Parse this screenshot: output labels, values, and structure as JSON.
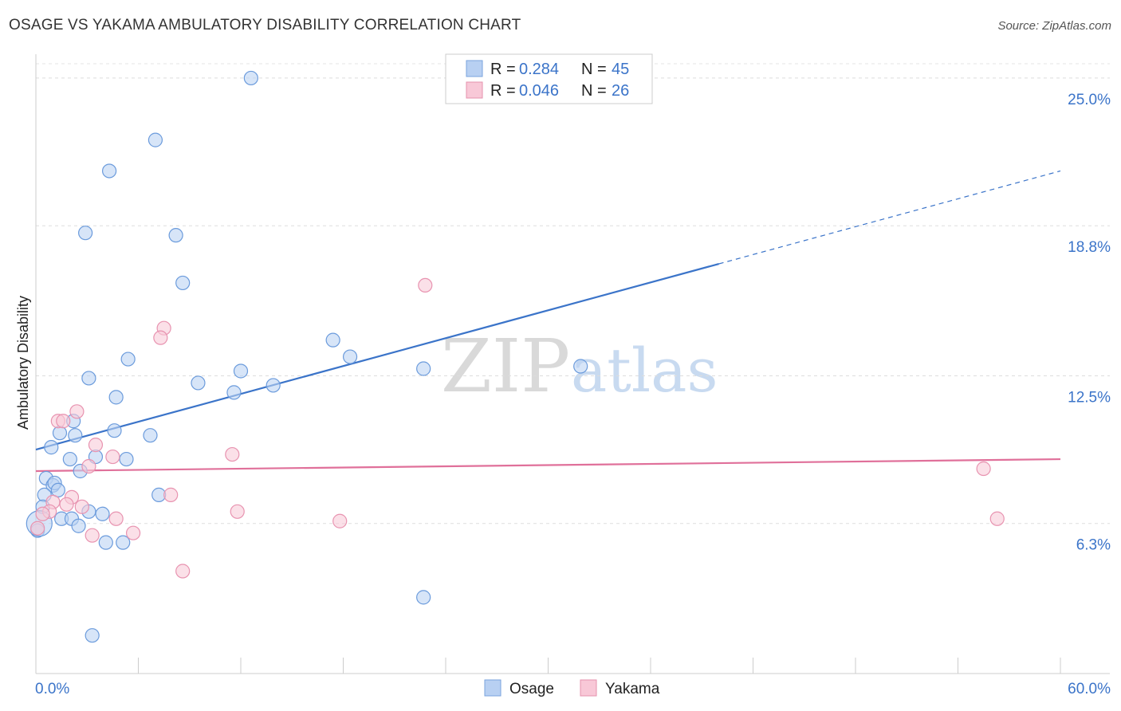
{
  "title": "OSAGE VS YAKAMA AMBULATORY DISABILITY CORRELATION CHART",
  "source": "Source: ZipAtlas.com",
  "watermark": {
    "zip": "ZIP",
    "atlas": "atlas"
  },
  "legend": {
    "rows": [
      {
        "r_label": "R =",
        "r_value": "0.284",
        "n_label": "N =",
        "n_value": "45"
      },
      {
        "r_label": "R =",
        "r_value": "0.046",
        "n_label": "N =",
        "n_value": "26"
      }
    ]
  },
  "chart_data": {
    "type": "scatter",
    "title": "OSAGE VS YAKAMA AMBULATORY DISABILITY CORRELATION CHART",
    "xlabel": "",
    "ylabel": "Ambulatory Disability",
    "xlim": [
      0,
      60
    ],
    "ylim": [
      0,
      25.6
    ],
    "x_tick_labels": [
      "0.0%",
      "60.0%"
    ],
    "y_ticks": [
      6.3,
      12.5,
      18.8,
      25.0
    ],
    "y_tick_labels": [
      "6.3%",
      "12.5%",
      "18.8%",
      "25.0%"
    ],
    "grid": true,
    "colors": {
      "Osage": "#3b74c9",
      "Yakama": "#e0709a"
    },
    "series": [
      {
        "name": "Osage",
        "trend": {
          "x0": 0,
          "y0": 9.4,
          "x1": 60,
          "y1": 21.1,
          "solid_until_x": 40
        },
        "points": [
          [
            12.6,
            25.0
          ],
          [
            7.0,
            22.4
          ],
          [
            4.3,
            21.1
          ],
          [
            2.9,
            18.5
          ],
          [
            8.2,
            18.4
          ],
          [
            8.6,
            16.4
          ],
          [
            17.4,
            14.0
          ],
          [
            18.4,
            13.3
          ],
          [
            5.4,
            13.2
          ],
          [
            3.1,
            12.4
          ],
          [
            12.0,
            12.7
          ],
          [
            9.5,
            12.2
          ],
          [
            22.7,
            12.8
          ],
          [
            31.9,
            12.9
          ],
          [
            11.6,
            11.8
          ],
          [
            13.9,
            12.1
          ],
          [
            4.7,
            11.6
          ],
          [
            2.2,
            10.6
          ],
          [
            1.4,
            10.1
          ],
          [
            2.3,
            10.0
          ],
          [
            4.6,
            10.2
          ],
          [
            6.7,
            10.0
          ],
          [
            0.9,
            9.5
          ],
          [
            2.6,
            8.5
          ],
          [
            2.0,
            9.0
          ],
          [
            3.5,
            9.1
          ],
          [
            5.3,
            9.0
          ],
          [
            0.6,
            8.2
          ],
          [
            1.0,
            7.9
          ],
          [
            1.1,
            8.0
          ],
          [
            1.3,
            7.7
          ],
          [
            0.5,
            7.5
          ],
          [
            7.2,
            7.5
          ],
          [
            0.4,
            7.0
          ],
          [
            3.1,
            6.8
          ],
          [
            3.9,
            6.7
          ],
          [
            1.5,
            6.5
          ],
          [
            2.1,
            6.5
          ],
          [
            2.5,
            6.2
          ],
          [
            0.1,
            6.0
          ],
          [
            4.1,
            5.5
          ],
          [
            5.1,
            5.5
          ],
          [
            22.7,
            3.2
          ],
          [
            3.3,
            1.6
          ],
          [
            0.2,
            6.3
          ]
        ]
      },
      {
        "name": "Yakama",
        "trend": {
          "x0": 0,
          "y0": 8.5,
          "x1": 60,
          "y1": 9.0,
          "solid_until_x": 60
        },
        "points": [
          [
            22.8,
            16.3
          ],
          [
            7.5,
            14.5
          ],
          [
            7.3,
            14.1
          ],
          [
            2.4,
            11.0
          ],
          [
            1.3,
            10.6
          ],
          [
            1.6,
            10.6
          ],
          [
            3.5,
            9.6
          ],
          [
            11.5,
            9.2
          ],
          [
            4.5,
            9.1
          ],
          [
            3.1,
            8.7
          ],
          [
            55.5,
            8.6
          ],
          [
            7.9,
            7.5
          ],
          [
            2.1,
            7.4
          ],
          [
            1.0,
            7.2
          ],
          [
            1.8,
            7.1
          ],
          [
            2.7,
            7.0
          ],
          [
            0.8,
            6.8
          ],
          [
            0.4,
            6.7
          ],
          [
            11.8,
            6.8
          ],
          [
            4.7,
            6.5
          ],
          [
            17.8,
            6.4
          ],
          [
            56.3,
            6.5
          ],
          [
            0.1,
            6.1
          ],
          [
            5.7,
            5.9
          ],
          [
            3.3,
            5.8
          ],
          [
            8.6,
            4.3
          ]
        ]
      }
    ]
  }
}
